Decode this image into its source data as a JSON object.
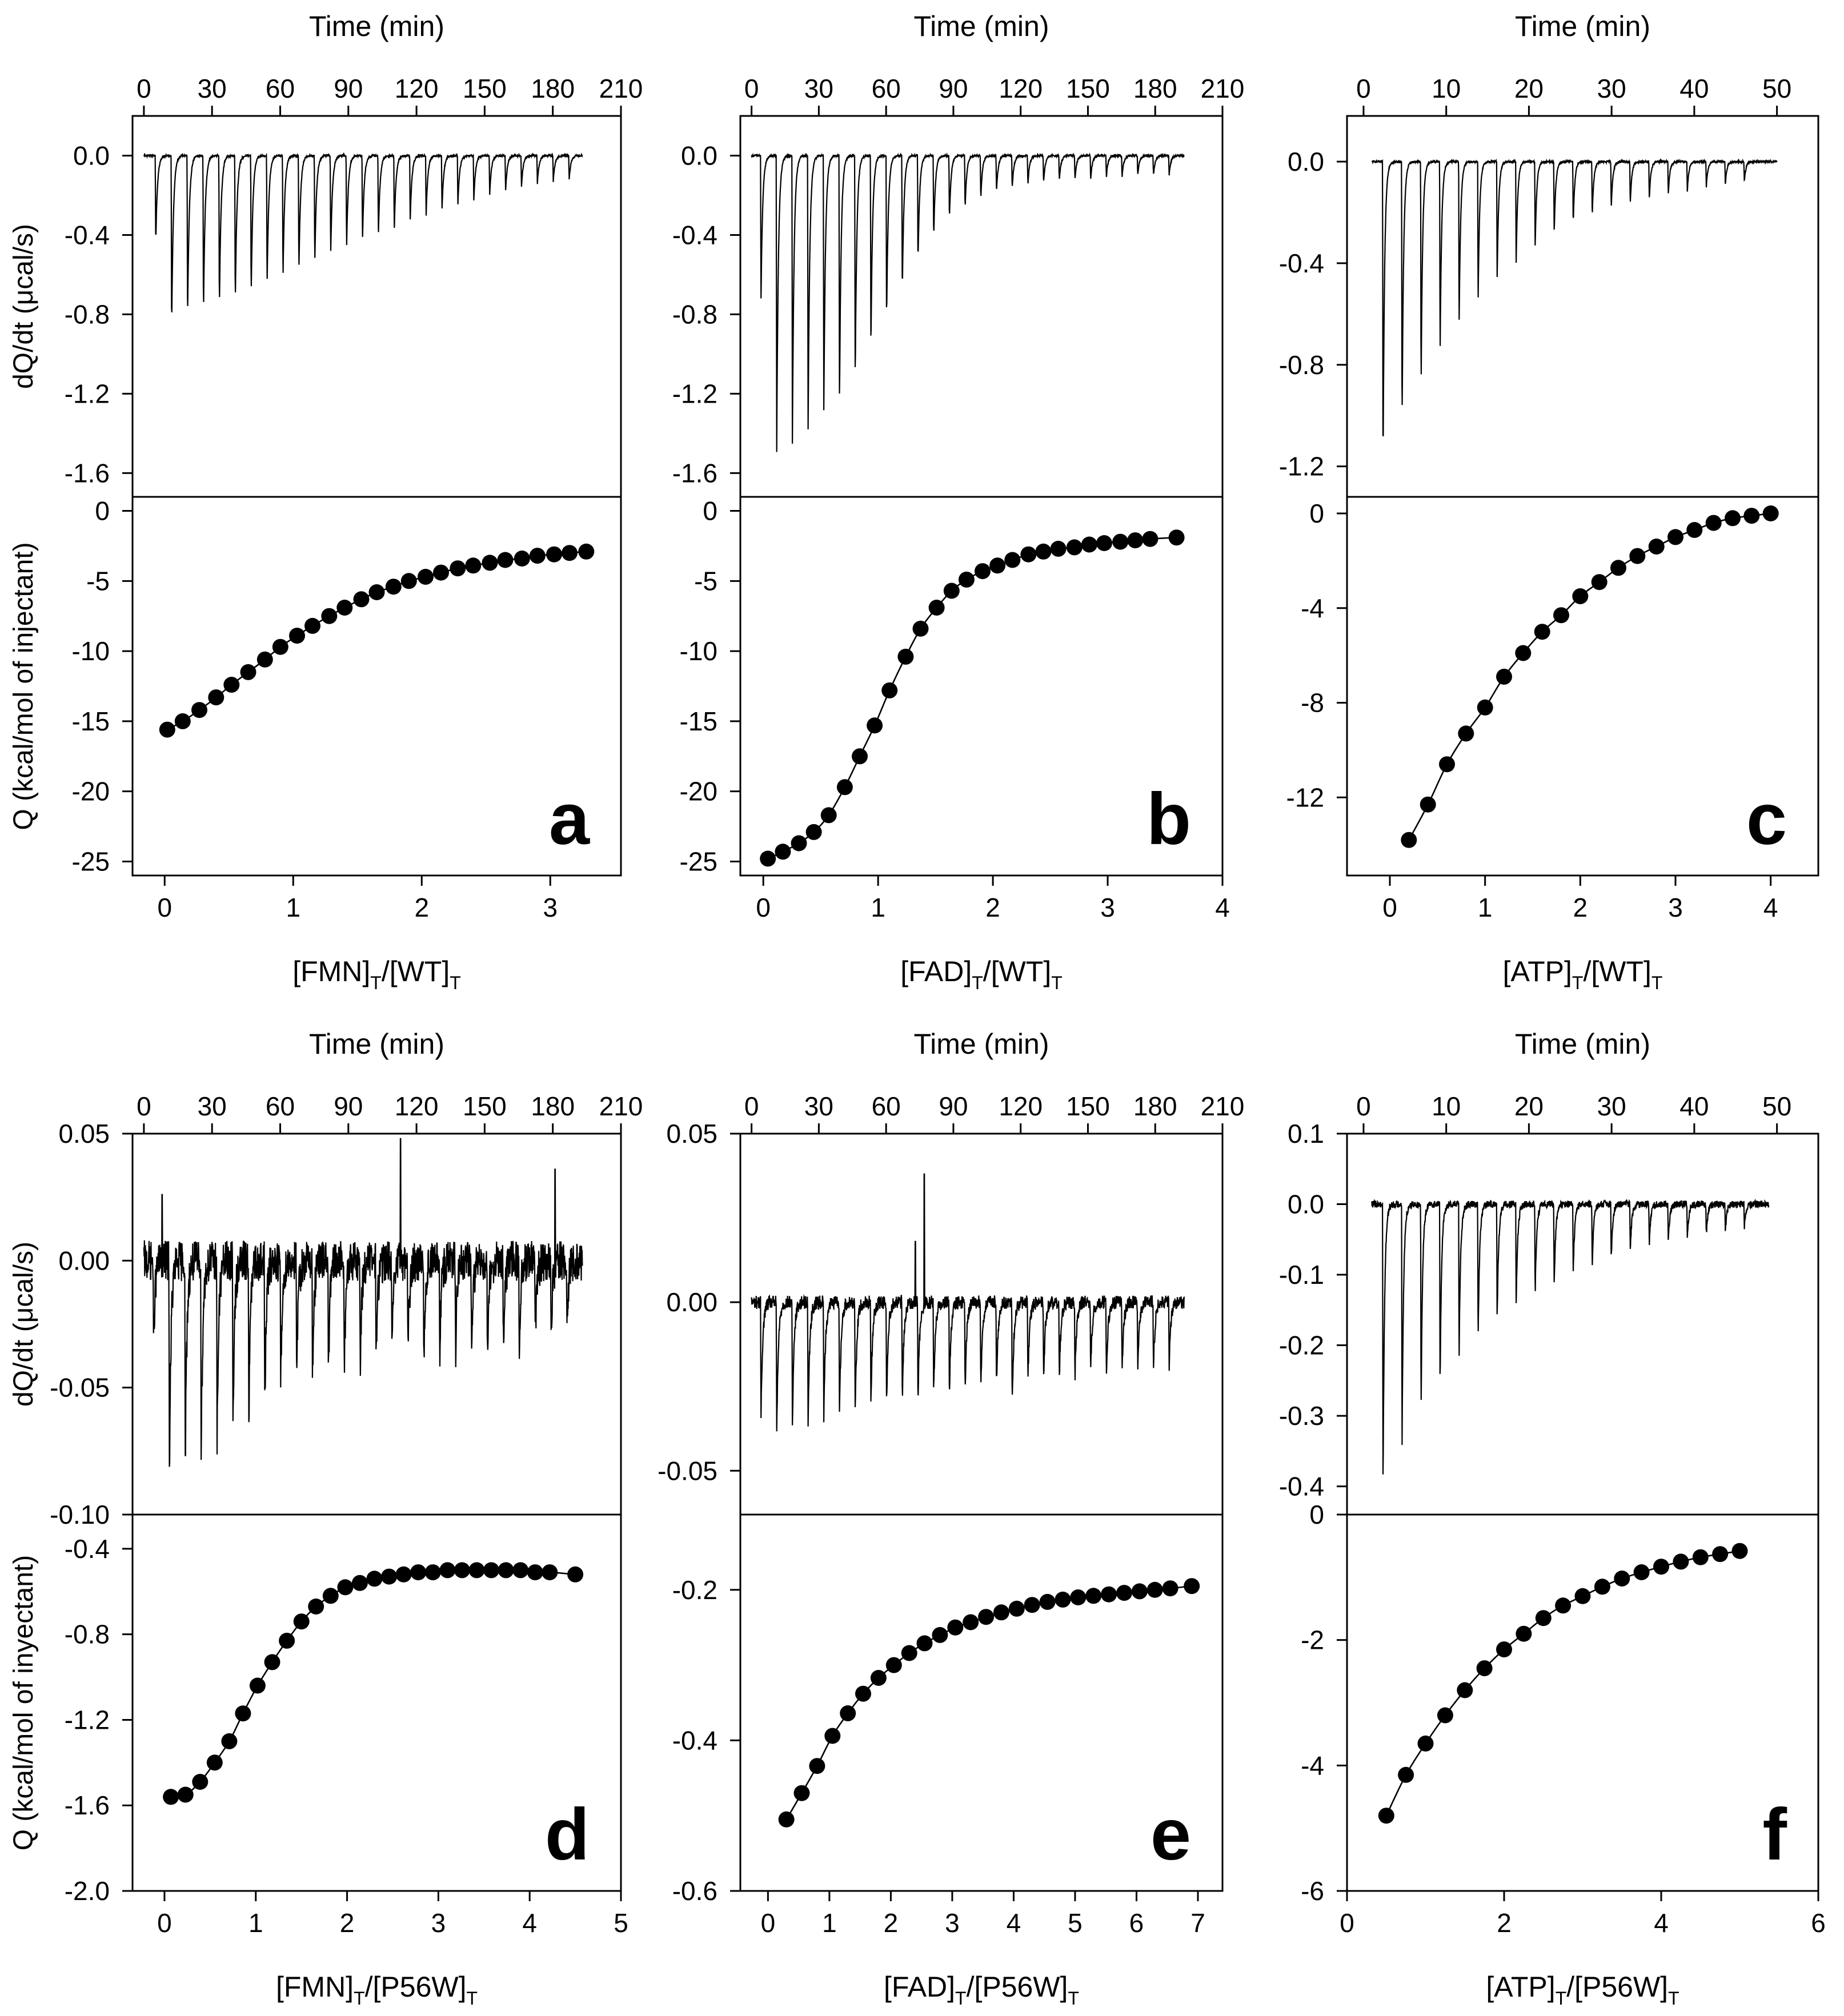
{
  "chart_data": [
    {
      "panel": "a",
      "type": "line",
      "top": {
        "xlabel": "Time (min)",
        "ylabel": "dQ/dt (μcal/s)",
        "xlim": [
          -5,
          210
        ],
        "xticks": [
          0,
          30,
          60,
          90,
          120,
          150,
          180,
          210
        ],
        "ylim": [
          -1.72,
          0.2
        ],
        "yticks": [
          0.0,
          -0.4,
          -0.8,
          -1.2,
          -1.6
        ],
        "ytick_labels": [
          "0.0",
          "-0.4",
          "-0.8",
          "-1.2",
          "-1.6"
        ],
        "trace": {
          "t_start": 0,
          "t_end": 193,
          "baseline": 0.0,
          "peaks_t": [
            5,
            12,
            19,
            26,
            33,
            40,
            47,
            54,
            61,
            68,
            75,
            82,
            89,
            96,
            103,
            110,
            117,
            124,
            131,
            138,
            145,
            152,
            159,
            166,
            173,
            180,
            187
          ],
          "peaks_y": [
            -0.45,
            -0.89,
            -0.85,
            -0.82,
            -0.79,
            -0.76,
            -0.72,
            -0.68,
            -0.64,
            -0.6,
            -0.56,
            -0.52,
            -0.48,
            -0.44,
            -0.41,
            -0.38,
            -0.34,
            -0.31,
            -0.28,
            -0.25,
            -0.23,
            -0.2,
            -0.18,
            -0.16,
            -0.14,
            -0.13,
            -0.12
          ],
          "noise": 0.005
        }
      },
      "bottom": {
        "xlabel": "[FMN]",
        "xlabel_tail": "/[WT]",
        "ylabel": "Q (kcal/mol of injectant)",
        "xlim": [
          -0.25,
          3.55
        ],
        "xticks": [
          0,
          1,
          2,
          3
        ],
        "ylim": [
          -26,
          1
        ],
        "yticks": [
          0,
          -5,
          -10,
          -15,
          -20,
          -25
        ],
        "ytick_labels": [
          "0",
          "-5",
          "-10",
          "-15",
          "-20",
          "-25"
        ],
        "x": [
          0.02,
          0.14,
          0.27,
          0.4,
          0.52,
          0.65,
          0.78,
          0.9,
          1.03,
          1.15,
          1.28,
          1.4,
          1.53,
          1.65,
          1.78,
          1.9,
          2.03,
          2.15,
          2.28,
          2.4,
          2.53,
          2.65,
          2.78,
          2.9,
          3.03,
          3.15,
          3.28
        ],
        "y": [
          -15.6,
          -15.0,
          -14.2,
          -13.3,
          -12.4,
          -11.5,
          -10.6,
          -9.7,
          -8.9,
          -8.2,
          -7.5,
          -6.9,
          -6.3,
          -5.8,
          -5.4,
          -5.0,
          -4.7,
          -4.4,
          -4.1,
          -3.9,
          -3.7,
          -3.5,
          -3.4,
          -3.2,
          -3.1,
          -3.0,
          -2.9
        ]
      },
      "letter": "a"
    },
    {
      "panel": "b",
      "type": "line",
      "top": {
        "xlabel": "Time (min)",
        "ylabel": "",
        "xlim": [
          -5,
          210
        ],
        "xticks": [
          0,
          30,
          60,
          90,
          120,
          150,
          180,
          210
        ],
        "ylim": [
          -1.72,
          0.2
        ],
        "yticks": [
          0.0,
          -0.4,
          -0.8,
          -1.2,
          -1.6
        ],
        "ytick_labels": [
          "0.0",
          "-0.4",
          "-0.8",
          "-1.2",
          "-1.6"
        ],
        "trace": {
          "t_start": 0,
          "t_end": 193,
          "baseline": 0.0,
          "peaks_t": [
            4,
            11,
            18,
            25,
            32,
            39,
            46,
            53,
            60,
            67,
            74,
            81,
            88,
            95,
            102,
            109,
            116,
            123,
            130,
            137,
            144,
            151,
            158,
            165,
            172,
            179,
            186
          ],
          "peaks_y": [
            -0.73,
            -1.5,
            -1.45,
            -1.4,
            -1.33,
            -1.27,
            -1.15,
            -1.0,
            -0.85,
            -0.7,
            -0.55,
            -0.42,
            -0.33,
            -0.27,
            -0.22,
            -0.19,
            -0.17,
            -0.15,
            -0.14,
            -0.13,
            -0.12,
            -0.12,
            -0.11,
            -0.11,
            -0.1,
            -0.1,
            -0.1
          ],
          "noise": 0.005
        }
      },
      "bottom": {
        "xlabel": "[FAD]",
        "xlabel_tail": "/[WT]",
        "ylabel": "",
        "xlim": [
          -0.2,
          4.0
        ],
        "xticks": [
          0,
          1,
          2,
          3,
          4
        ],
        "ylim": [
          -26,
          1
        ],
        "yticks": [
          0,
          -5,
          -10,
          -15,
          -20,
          -25
        ],
        "ytick_labels": [
          "0",
          "-5",
          "-10",
          "-15",
          "-20",
          "-25"
        ],
        "x": [
          0.04,
          0.17,
          0.31,
          0.44,
          0.57,
          0.71,
          0.84,
          0.97,
          1.1,
          1.24,
          1.37,
          1.51,
          1.64,
          1.77,
          1.91,
          2.04,
          2.17,
          2.31,
          2.44,
          2.57,
          2.71,
          2.84,
          2.97,
          3.11,
          3.24,
          3.37,
          3.6
        ],
        "y": [
          -24.8,
          -24.3,
          -23.7,
          -22.9,
          -21.7,
          -19.7,
          -17.5,
          -15.3,
          -12.8,
          -10.4,
          -8.4,
          -6.9,
          -5.7,
          -4.9,
          -4.3,
          -3.9,
          -3.5,
          -3.1,
          -2.9,
          -2.7,
          -2.6,
          -2.4,
          -2.3,
          -2.2,
          -2.1,
          -2.0,
          -1.9
        ]
      },
      "letter": "b"
    },
    {
      "panel": "c",
      "type": "line",
      "top": {
        "xlabel": "Time (min)",
        "ylabel": "",
        "xlim": [
          -2,
          55
        ],
        "xticks": [
          0,
          10,
          20,
          30,
          40,
          50
        ],
        "ylim": [
          -1.32,
          0.18
        ],
        "yticks": [
          0.0,
          -0.4,
          -0.8,
          -1.2
        ],
        "ytick_labels": [
          "0.0",
          "-0.4",
          "-0.8",
          "-1.2"
        ],
        "trace": {
          "t_start": 1,
          "t_end": 50,
          "baseline": 0.0,
          "peaks_t": [
            2.3,
            4.6,
            6.9,
            9.2,
            11.5,
            13.8,
            16.1,
            18.4,
            20.7,
            23.0,
            25.3,
            27.6,
            29.9,
            32.2,
            34.5,
            36.8,
            39.1,
            41.4,
            43.7,
            46.0
          ],
          "peaks_y": [
            -1.23,
            -1.07,
            -0.92,
            -0.78,
            -0.66,
            -0.56,
            -0.47,
            -0.4,
            -0.34,
            -0.29,
            -0.25,
            -0.22,
            -0.19,
            -0.17,
            -0.15,
            -0.13,
            -0.12,
            -0.1,
            -0.09,
            -0.08
          ],
          "noise": 0.004
        }
      },
      "bottom": {
        "xlabel": "[ATP]",
        "xlabel_tail": "/[WT]",
        "ylabel": "",
        "xlim": [
          -0.45,
          4.5
        ],
        "xticks": [
          0,
          1,
          2,
          3,
          4
        ],
        "ylim": [
          -15.3,
          0.7
        ],
        "yticks": [
          0,
          -4,
          -8,
          -12
        ],
        "ytick_labels": [
          "0",
          "-4",
          "-8",
          "-12"
        ],
        "x": [
          0.2,
          0.4,
          0.6,
          0.8,
          1.0,
          1.2,
          1.4,
          1.6,
          1.8,
          2.0,
          2.2,
          2.4,
          2.6,
          2.8,
          3.0,
          3.2,
          3.4,
          3.6,
          3.8,
          4.0
        ],
        "y": [
          -13.8,
          -12.3,
          -10.6,
          -9.3,
          -8.2,
          -6.9,
          -5.9,
          -5.0,
          -4.3,
          -3.5,
          -2.9,
          -2.3,
          -1.8,
          -1.4,
          -1.0,
          -0.7,
          -0.4,
          -0.2,
          -0.1,
          0.0
        ]
      },
      "letter": "c"
    },
    {
      "panel": "d",
      "type": "line",
      "top": {
        "xlabel": "Time (min)",
        "ylabel": "dQ/dt (μcal/s)",
        "xlim": [
          -5,
          210
        ],
        "xticks": [
          0,
          30,
          60,
          90,
          120,
          150,
          180,
          210
        ],
        "ylim": [
          -0.1,
          0.05
        ],
        "yticks": [
          0.05,
          0.0,
          -0.05,
          -0.1
        ],
        "ytick_labels": [
          "0.05",
          "0.00",
          "-0.05",
          "-0.10"
        ],
        "trace": {
          "t_start": 0,
          "t_end": 193,
          "baseline": 0.0,
          "peaks_t": [
            4,
            11,
            18,
            25,
            32,
            39,
            46,
            53,
            60,
            67,
            74,
            81,
            88,
            95,
            102,
            109,
            116,
            123,
            130,
            137,
            144,
            151,
            158,
            165,
            172,
            179,
            186
          ],
          "peaks_y": [
            -0.034,
            -0.085,
            -0.082,
            -0.079,
            -0.074,
            -0.068,
            -0.063,
            -0.058,
            -0.053,
            -0.048,
            -0.045,
            -0.044,
            -0.043,
            -0.042,
            -0.041,
            -0.04,
            -0.04,
            -0.039,
            -0.038,
            -0.038,
            -0.037,
            -0.036,
            -0.035,
            -0.034,
            -0.033,
            -0.03,
            -0.026
          ],
          "noise": 0.008,
          "spikes": [
            [
              113,
              0.048
            ],
            [
              181,
              0.036
            ],
            [
              8,
              0.026
            ]
          ]
        }
      },
      "bottom": {
        "xlabel": "[FMN]",
        "xlabel_tail": "/[P56W]",
        "ylabel": "Q (kcal/mol of inyectant)",
        "xlim": [
          -0.35,
          5.0
        ],
        "xticks": [
          0,
          1,
          2,
          3,
          4,
          5
        ],
        "ylim": [
          -2.0,
          -0.24
        ],
        "yticks": [
          -0.4,
          -0.8,
          -1.2,
          -1.6,
          -2.0
        ],
        "ytick_labels": [
          "-0.4",
          "-0.8",
          "-1.2",
          "-1.6",
          "-2.0"
        ],
        "x": [
          0.07,
          0.23,
          0.39,
          0.55,
          0.71,
          0.86,
          1.02,
          1.18,
          1.34,
          1.5,
          1.66,
          1.82,
          1.98,
          2.14,
          2.3,
          2.46,
          2.62,
          2.78,
          2.94,
          3.1,
          3.26,
          3.42,
          3.58,
          3.74,
          3.9,
          4.06,
          4.22,
          4.5
        ],
        "y": [
          -1.56,
          -1.55,
          -1.49,
          -1.4,
          -1.3,
          -1.17,
          -1.04,
          -0.93,
          -0.83,
          -0.74,
          -0.67,
          -0.62,
          -0.58,
          -0.56,
          -0.54,
          -0.53,
          -0.52,
          -0.51,
          -0.51,
          -0.5,
          -0.5,
          -0.5,
          -0.5,
          -0.5,
          -0.5,
          -0.51,
          -0.51,
          -0.52
        ]
      },
      "letter": "d"
    },
    {
      "panel": "e",
      "type": "line",
      "top": {
        "xlabel": "Time (min)",
        "ylabel": "",
        "xlim": [
          -5,
          210
        ],
        "xticks": [
          0,
          30,
          60,
          90,
          120,
          150,
          180,
          210
        ],
        "ylim": [
          -0.063,
          0.05
        ],
        "yticks": [
          0.05,
          0.0,
          -0.05
        ],
        "ytick_labels": [
          "0.05",
          "0.00",
          "-0.05"
        ],
        "trace": {
          "t_start": 0,
          "t_end": 193,
          "baseline": 0.0,
          "peaks_t": [
            4,
            11,
            18,
            25,
            32,
            39,
            46,
            53,
            60,
            67,
            74,
            81,
            88,
            95,
            102,
            109,
            116,
            123,
            130,
            137,
            144,
            151,
            158,
            165,
            172,
            179,
            186
          ],
          "peaks_y": [
            -0.034,
            -0.04,
            -0.037,
            -0.036,
            -0.035,
            -0.034,
            -0.033,
            -0.032,
            -0.031,
            -0.03,
            -0.029,
            -0.028,
            -0.028,
            -0.027,
            -0.027,
            -0.026,
            -0.032,
            -0.025,
            -0.024,
            -0.024,
            -0.023,
            -0.022,
            -0.022,
            -0.021,
            -0.021,
            -0.02,
            -0.02
          ],
          "noise": 0.002,
          "spikes": [
            [
              77,
              0.038
            ],
            [
              73,
              0.018
            ]
          ]
        }
      },
      "bottom": {
        "xlabel": "[FAD]",
        "xlabel_tail": "/[P56W]",
        "ylabel": "",
        "xlim": [
          -0.45,
          7.4
        ],
        "xticks": [
          0,
          1,
          2,
          3,
          4,
          5,
          6,
          7
        ],
        "ylim": [
          -0.6,
          -0.1
        ],
        "yticks": [
          -0.2,
          -0.4,
          -0.6
        ],
        "ytick_labels": [
          "-0.2",
          "-0.4",
          "-0.6"
        ],
        "x": [
          0.3,
          0.55,
          0.8,
          1.05,
          1.3,
          1.55,
          1.8,
          2.05,
          2.3,
          2.55,
          2.8,
          3.05,
          3.3,
          3.55,
          3.8,
          4.05,
          4.3,
          4.55,
          4.8,
          5.05,
          5.3,
          5.55,
          5.8,
          6.05,
          6.3,
          6.55,
          6.9
        ],
        "y": [
          -0.505,
          -0.47,
          -0.434,
          -0.394,
          -0.364,
          -0.338,
          -0.317,
          -0.3,
          -0.284,
          -0.271,
          -0.26,
          -0.25,
          -0.243,
          -0.236,
          -0.23,
          -0.225,
          -0.22,
          -0.216,
          -0.213,
          -0.21,
          -0.208,
          -0.206,
          -0.204,
          -0.202,
          -0.2,
          -0.198,
          -0.195
        ]
      },
      "letter": "e"
    },
    {
      "panel": "f",
      "type": "line",
      "top": {
        "xlabel": "Time (min)",
        "ylabel": "",
        "xlim": [
          -2,
          55
        ],
        "xticks": [
          0,
          10,
          20,
          30,
          40,
          50
        ],
        "ylim": [
          -0.44,
          0.1
        ],
        "yticks": [
          0.1,
          0.0,
          -0.1,
          -0.2,
          -0.3,
          -0.4
        ],
        "ytick_labels": [
          "0.1",
          "0.0",
          "-0.1",
          "-0.2",
          "-0.3",
          "-0.4"
        ],
        "trace": {
          "t_start": 1,
          "t_end": 49,
          "baseline": 0.0,
          "peaks_t": [
            2.3,
            4.6,
            6.9,
            9.2,
            11.5,
            13.8,
            16.1,
            18.4,
            20.7,
            23.0,
            25.3,
            27.6,
            29.9,
            32.2,
            34.5,
            36.8,
            39.1,
            41.4,
            43.7,
            46.0
          ],
          "peaks_y": [
            -0.41,
            -0.35,
            -0.3,
            -0.26,
            -0.22,
            -0.2,
            -0.17,
            -0.15,
            -0.13,
            -0.12,
            -0.1,
            -0.09,
            -0.08,
            -0.07,
            -0.06,
            -0.055,
            -0.05,
            -0.045,
            -0.04,
            -0.035
          ],
          "noise": 0.005
        }
      },
      "bottom": {
        "xlabel": "[ATP]",
        "xlabel_tail": "/[P56W]",
        "ylabel": "",
        "xlim": [
          0,
          6
        ],
        "xticks": [
          0,
          2,
          4,
          6
        ],
        "ylim": [
          -6,
          0
        ],
        "yticks": [
          0,
          -2,
          -4,
          -6
        ],
        "ytick_labels": [
          "0",
          "-2",
          "-4",
          "-6"
        ],
        "x": [
          0.5,
          0.75,
          1.0,
          1.25,
          1.5,
          1.75,
          2.0,
          2.25,
          2.5,
          2.75,
          3.0,
          3.25,
          3.5,
          3.75,
          4.0,
          4.25,
          4.5,
          4.75,
          5.0
        ],
        "y": [
          -4.8,
          -4.15,
          -3.65,
          -3.2,
          -2.8,
          -2.45,
          -2.15,
          -1.9,
          -1.65,
          -1.45,
          -1.3,
          -1.15,
          -1.02,
          -0.92,
          -0.83,
          -0.75,
          -0.68,
          -0.63,
          -0.58
        ]
      },
      "letter": "f"
    }
  ]
}
